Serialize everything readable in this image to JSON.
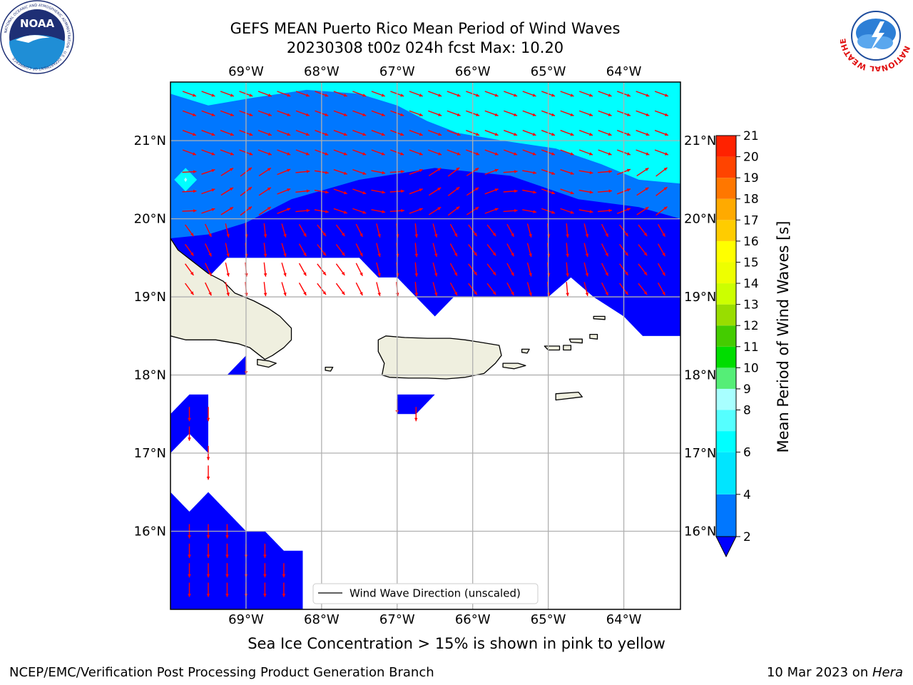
{
  "header": {
    "title_line1": "GEFS MEAN Puerto Rico Mean Period of Wind Waves",
    "title_line2": "20230308 t00z 024h fcst   Max: 10.20"
  },
  "logos": {
    "left": {
      "name": "noaa-logo",
      "text": "NOAA",
      "ring": "NATIONAL OCEANIC AND ATMOSPHERIC ADMINISTRATION · U.S. DEPARTMENT OF COMMERCE"
    },
    "right": {
      "name": "nws-logo",
      "ring": "NATIONAL WEATHER SERVICE"
    }
  },
  "caption": "Sea Ice Concentration > 15% is shown in pink to yellow",
  "footer": {
    "left": "NCEP/EMC/Verification Post Processing Product Generation Branch",
    "right_date": "10 Mar 2023 on ",
    "right_host": "Hera"
  },
  "chart_data": {
    "type": "heatmap",
    "title": "GEFS MEAN Puerto Rico Mean Period of Wind Waves",
    "subtitle": "20230308 t00z 024h fcst   Max: 10.20",
    "variable": "Mean Period of Wind Waves [s]",
    "max_value": 10.2,
    "lon_range": [
      -70.0,
      -63.25
    ],
    "lat_range": [
      15.0,
      21.75
    ],
    "lon_ticks": [
      -69,
      -68,
      -67,
      -66,
      -65,
      -64
    ],
    "lon_tick_labels": [
      "69°W",
      "68°W",
      "67°W",
      "66°W",
      "65°W",
      "64°W"
    ],
    "lat_ticks": [
      16,
      17,
      18,
      19,
      20,
      21
    ],
    "lat_tick_labels": [
      "16°N",
      "17°N",
      "18°N",
      "19°N",
      "20°N",
      "21°N"
    ],
    "grid": true,
    "legend": {
      "label": "Wind Wave Direction (unscaled)",
      "placement": "bottom-center"
    },
    "colorbar": {
      "label": "Mean Period of Wind Waves [s]",
      "ticks": [
        2,
        4,
        6,
        8,
        9,
        10,
        11,
        12,
        13,
        14,
        15,
        16,
        17,
        18,
        19,
        20,
        21
      ],
      "levels": [
        {
          "from": 2,
          "to": 4,
          "color": "#0077ff"
        },
        {
          "from": 4,
          "to": 6,
          "color": "#00e5ff"
        },
        {
          "from": 6,
          "to": 7,
          "color": "#00ffff"
        },
        {
          "from": 7,
          "to": 8,
          "color": "#55ffff"
        },
        {
          "from": 8,
          "to": 9,
          "color": "#a8ffff"
        },
        {
          "from": 9,
          "to": 10,
          "color": "#55ee77"
        },
        {
          "from": 10,
          "to": 11,
          "color": "#00dd00"
        },
        {
          "from": 11,
          "to": 12,
          "color": "#44cc00"
        },
        {
          "from": 12,
          "to": 13,
          "color": "#99dd00"
        },
        {
          "from": 13,
          "to": 14,
          "color": "#ccff00"
        },
        {
          "from": 14,
          "to": 15,
          "color": "#eeff00"
        },
        {
          "from": 15,
          "to": 16,
          "color": "#ffff00"
        },
        {
          "from": 16,
          "to": 17,
          "color": "#ffcc00"
        },
        {
          "from": 17,
          "to": 18,
          "color": "#ffaa00"
        },
        {
          "from": 18,
          "to": 19,
          "color": "#ff7700"
        },
        {
          "from": 19,
          "to": 20,
          "color": "#ff4400"
        },
        {
          "from": 20,
          "to": 21,
          "color": "#ff2200"
        },
        {
          "from": 21,
          "to": 22,
          "color": "#ff0000"
        }
      ],
      "under_color": "#0000ff"
    },
    "fill_colors": {
      "below_2s": "#0000ff",
      "band_2_4s": "#0077ff",
      "band_4_6s": "#00ffff",
      "peak": "#a8ffff",
      "land": "#efefdf",
      "arrow": "#ff0000"
    },
    "regions": [
      {
        "band": "4-6 s",
        "polygon_lonlat": [
          [
            -70,
            21.75
          ],
          [
            -63.25,
            21.75
          ],
          [
            -63.25,
            20.45
          ],
          [
            -63.8,
            20.5
          ],
          [
            -64.3,
            20.7
          ],
          [
            -64.9,
            20.9
          ],
          [
            -65.6,
            21.0
          ],
          [
            -66.2,
            21.1
          ],
          [
            -66.6,
            21.25
          ],
          [
            -67.0,
            21.45
          ],
          [
            -67.5,
            21.6
          ],
          [
            -68.2,
            21.65
          ],
          [
            -68.9,
            21.55
          ],
          [
            -69.5,
            21.45
          ],
          [
            -70,
            21.6
          ]
        ]
      },
      {
        "band": "4-6 s",
        "polygon_lonlat": [
          [
            -69.95,
            20.5
          ],
          [
            -69.8,
            20.65
          ],
          [
            -69.65,
            20.5
          ],
          [
            -69.8,
            20.35
          ]
        ]
      },
      {
        "band": "8-9 s",
        "polygon_lonlat": [
          [
            -69.82,
            20.5
          ],
          [
            -69.8,
            20.53
          ],
          [
            -69.78,
            20.5
          ],
          [
            -69.8,
            20.47
          ]
        ]
      },
      {
        "band": "<2 s",
        "polygon_lonlat": [
          [
            -70,
            19.75
          ],
          [
            -69.5,
            19.8
          ],
          [
            -69.0,
            19.95
          ],
          [
            -68.4,
            20.25
          ],
          [
            -67.5,
            20.5
          ],
          [
            -66.5,
            20.65
          ],
          [
            -65.5,
            20.55
          ],
          [
            -64.6,
            20.25
          ],
          [
            -63.8,
            20.15
          ],
          [
            -63.25,
            20.0
          ],
          [
            -63.25,
            18.5
          ],
          [
            -63.75,
            18.5
          ],
          [
            -64.0,
            18.75
          ],
          [
            -64.4,
            19.0
          ],
          [
            -64.7,
            19.25
          ],
          [
            -65.0,
            19.0
          ],
          [
            -65.5,
            19.0
          ],
          [
            -66.25,
            19.0
          ],
          [
            -66.5,
            18.75
          ],
          [
            -66.75,
            19.0
          ],
          [
            -67.0,
            19.25
          ],
          [
            -67.25,
            19.25
          ],
          [
            -67.5,
            19.5
          ],
          [
            -69.0,
            19.5
          ],
          [
            -69.25,
            19.5
          ],
          [
            -69.5,
            19.25
          ],
          [
            -70,
            19.5
          ]
        ]
      },
      {
        "band": "<2 s",
        "polygon_lonlat": [
          [
            -69.25,
            18.0
          ],
          [
            -69.0,
            18.0
          ],
          [
            -69.0,
            18.25
          ]
        ]
      },
      {
        "band": "<2 s",
        "polygon_lonlat": [
          [
            -67.0,
            17.75
          ],
          [
            -66.5,
            17.75
          ],
          [
            -66.75,
            17.5
          ],
          [
            -67.0,
            17.5
          ]
        ]
      },
      {
        "band": "<2 s",
        "polygon_lonlat": [
          [
            -70,
            17.5
          ],
          [
            -69.75,
            17.75
          ],
          [
            -69.5,
            17.75
          ],
          [
            -69.5,
            17.0
          ],
          [
            -69.75,
            17.25
          ],
          [
            -70,
            17.0
          ]
        ]
      },
      {
        "band": "<2 s",
        "polygon_lonlat": [
          [
            -70,
            16.5
          ],
          [
            -69.75,
            16.25
          ],
          [
            -69.5,
            16.5
          ],
          [
            -69.0,
            16.0
          ],
          [
            -68.75,
            16.0
          ],
          [
            -68.5,
            15.75
          ],
          [
            -68.25,
            15.75
          ],
          [
            -68.25,
            15.0
          ],
          [
            -70,
            15.0
          ]
        ]
      }
    ],
    "land": [
      {
        "name": "Hispaniola",
        "polygon_lonlat": [
          [
            -70,
            19.75
          ],
          [
            -69.9,
            19.6
          ],
          [
            -69.7,
            19.45
          ],
          [
            -69.5,
            19.3
          ],
          [
            -69.3,
            19.2
          ],
          [
            -69.15,
            19.05
          ],
          [
            -68.9,
            18.95
          ],
          [
            -68.7,
            18.85
          ],
          [
            -68.55,
            18.75
          ],
          [
            -68.4,
            18.6
          ],
          [
            -68.4,
            18.45
          ],
          [
            -68.5,
            18.35
          ],
          [
            -68.65,
            18.25
          ],
          [
            -68.75,
            18.2
          ],
          [
            -68.95,
            18.35
          ],
          [
            -69.1,
            18.4
          ],
          [
            -69.4,
            18.45
          ],
          [
            -69.6,
            18.45
          ],
          [
            -69.8,
            18.45
          ],
          [
            -70,
            18.5
          ]
        ]
      },
      {
        "name": "Isla Saona",
        "polygon_lonlat": [
          [
            -68.85,
            18.2
          ],
          [
            -68.7,
            18.18
          ],
          [
            -68.6,
            18.15
          ],
          [
            -68.7,
            18.1
          ],
          [
            -68.85,
            18.13
          ]
        ]
      },
      {
        "name": "Isla Mona",
        "polygon_lonlat": [
          [
            -67.95,
            18.1
          ],
          [
            -67.85,
            18.1
          ],
          [
            -67.88,
            18.05
          ],
          [
            -67.95,
            18.06
          ]
        ]
      },
      {
        "name": "Puerto Rico",
        "polygon_lonlat": [
          [
            -67.25,
            18.45
          ],
          [
            -67.15,
            18.5
          ],
          [
            -66.9,
            18.48
          ],
          [
            -66.6,
            18.47
          ],
          [
            -66.3,
            18.47
          ],
          [
            -66.1,
            18.45
          ],
          [
            -65.9,
            18.42
          ],
          [
            -65.65,
            18.38
          ],
          [
            -65.62,
            18.25
          ],
          [
            -65.7,
            18.15
          ],
          [
            -65.85,
            18.02
          ],
          [
            -66.1,
            17.97
          ],
          [
            -66.35,
            17.95
          ],
          [
            -66.6,
            17.96
          ],
          [
            -66.85,
            17.96
          ],
          [
            -67.1,
            17.97
          ],
          [
            -67.2,
            18.0
          ],
          [
            -67.17,
            18.15
          ],
          [
            -67.25,
            18.3
          ]
        ]
      },
      {
        "name": "Vieques",
        "polygon_lonlat": [
          [
            -65.6,
            18.15
          ],
          [
            -65.4,
            18.15
          ],
          [
            -65.3,
            18.12
          ],
          [
            -65.45,
            18.08
          ],
          [
            -65.6,
            18.1
          ]
        ]
      },
      {
        "name": "Culebra",
        "polygon_lonlat": [
          [
            -65.35,
            18.33
          ],
          [
            -65.25,
            18.33
          ],
          [
            -65.28,
            18.28
          ],
          [
            -65.35,
            18.29
          ]
        ]
      },
      {
        "name": "St. Thomas",
        "polygon_lonlat": [
          [
            -65.05,
            18.37
          ],
          [
            -64.85,
            18.37
          ],
          [
            -64.85,
            18.32
          ],
          [
            -65.0,
            18.32
          ]
        ]
      },
      {
        "name": "St. John",
        "polygon_lonlat": [
          [
            -64.8,
            18.38
          ],
          [
            -64.7,
            18.38
          ],
          [
            -64.7,
            18.32
          ],
          [
            -64.8,
            18.32
          ]
        ]
      },
      {
        "name": "Tortola",
        "polygon_lonlat": [
          [
            -64.72,
            18.46
          ],
          [
            -64.55,
            18.46
          ],
          [
            -64.55,
            18.41
          ],
          [
            -64.7,
            18.42
          ]
        ]
      },
      {
        "name": "Virgin Gorda",
        "polygon_lonlat": [
          [
            -64.45,
            18.52
          ],
          [
            -64.35,
            18.52
          ],
          [
            -64.35,
            18.46
          ],
          [
            -64.45,
            18.47
          ]
        ]
      },
      {
        "name": "Anegada",
        "polygon_lonlat": [
          [
            -64.4,
            18.75
          ],
          [
            -64.25,
            18.75
          ],
          [
            -64.25,
            18.71
          ],
          [
            -64.4,
            18.72
          ]
        ]
      },
      {
        "name": "St. Croix",
        "polygon_lonlat": [
          [
            -64.9,
            17.76
          ],
          [
            -64.6,
            17.78
          ],
          [
            -64.55,
            17.72
          ],
          [
            -64.9,
            17.68
          ]
        ]
      }
    ]
  }
}
